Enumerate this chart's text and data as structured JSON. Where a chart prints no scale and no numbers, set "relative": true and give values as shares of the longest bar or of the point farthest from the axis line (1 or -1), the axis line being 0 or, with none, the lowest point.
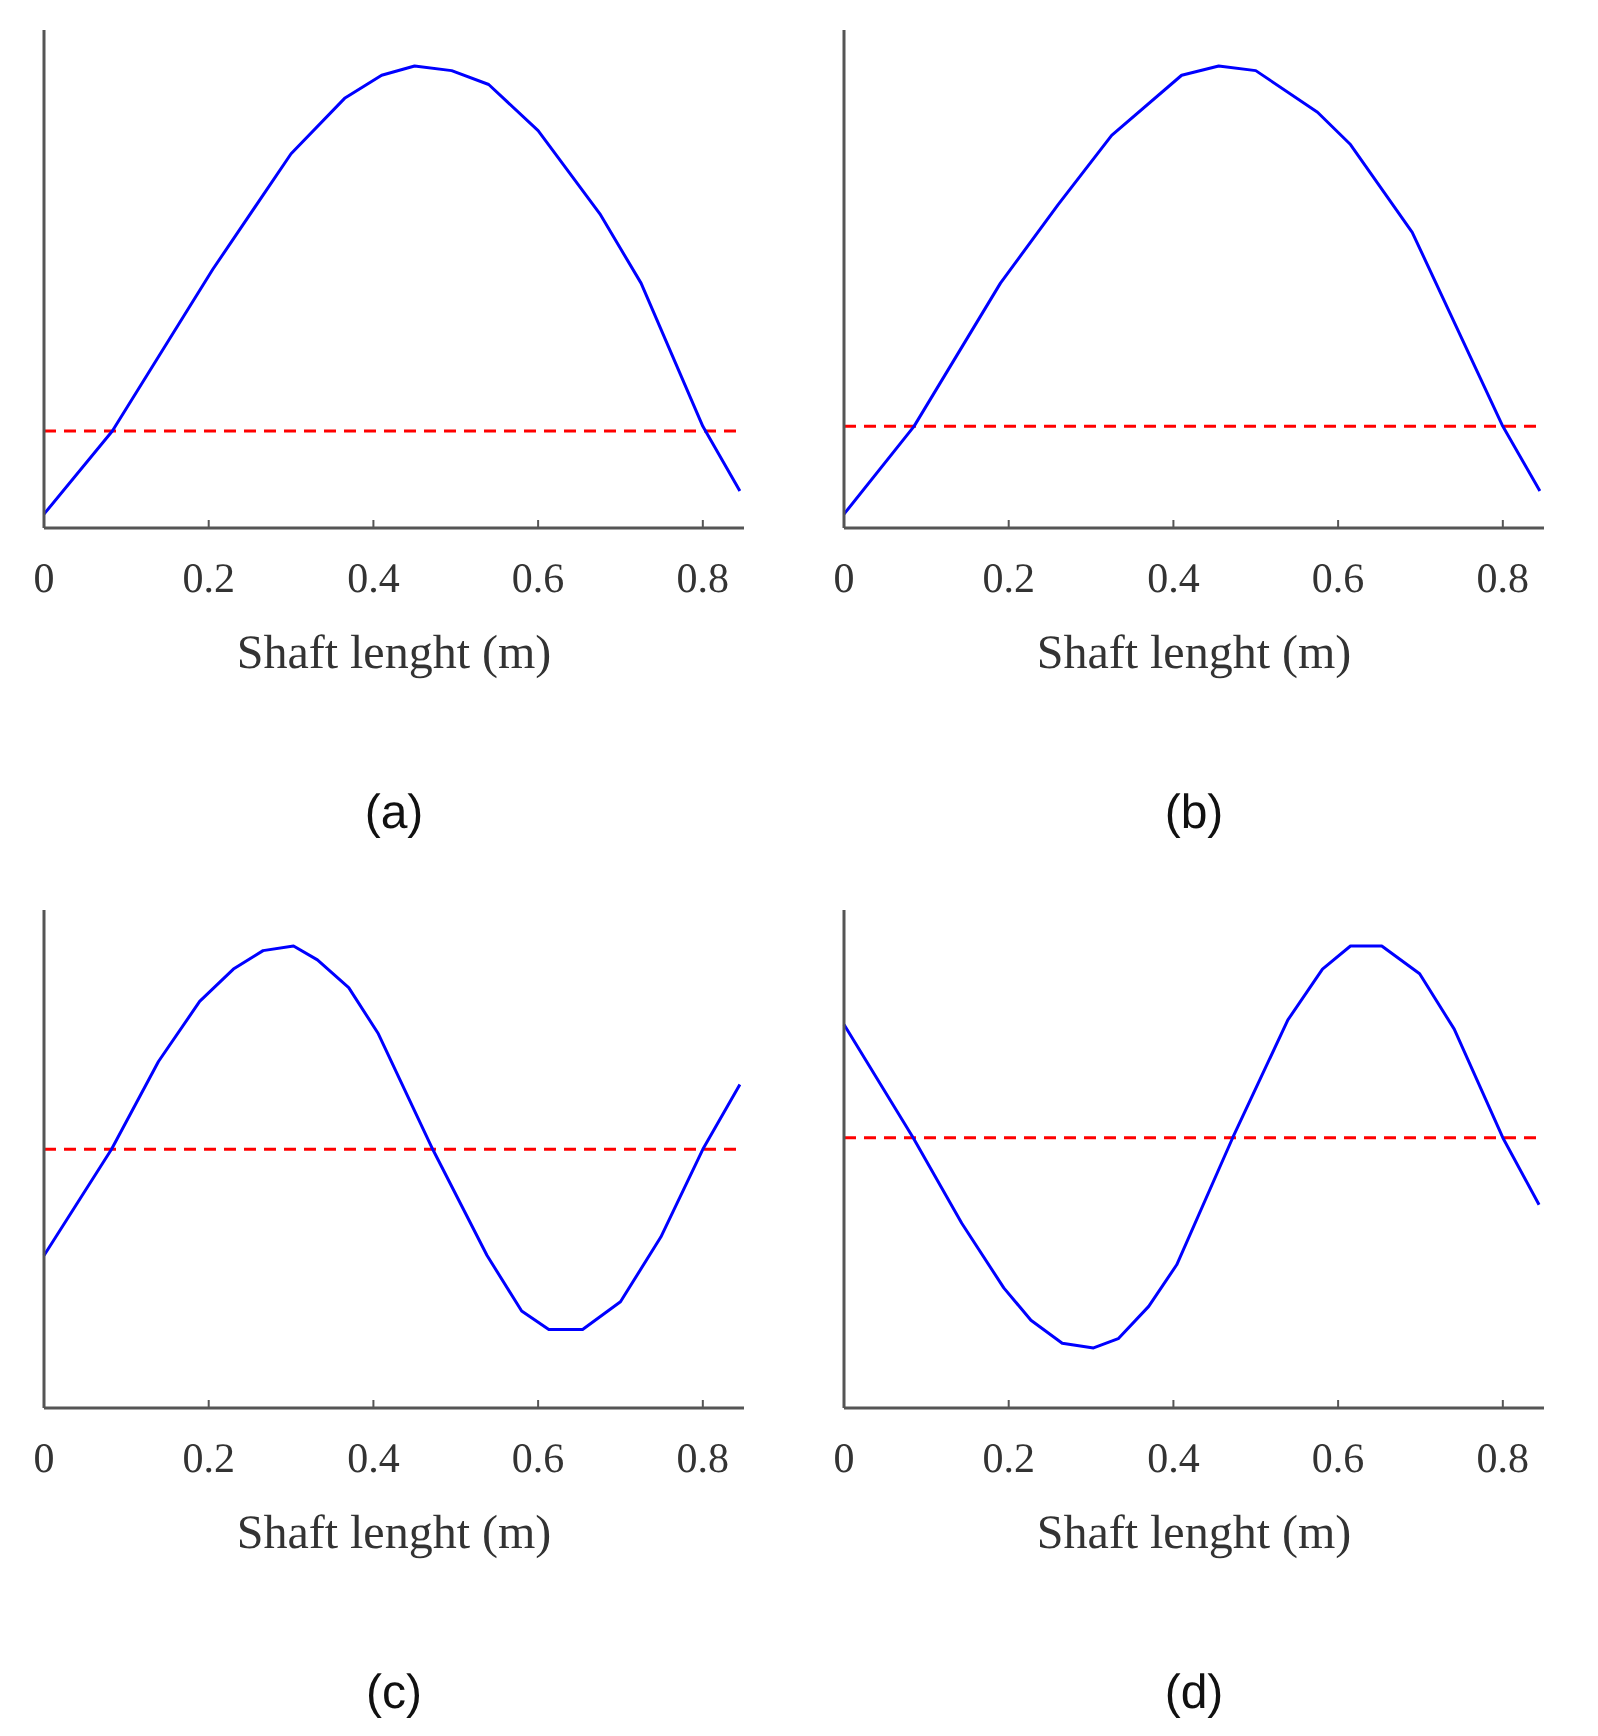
{
  "chart_data": [
    {
      "type": "line",
      "title": "(a)",
      "xlabel": "Shaft lenght (m)",
      "relative": true,
      "xlim": [
        0,
        0.85
      ],
      "xticks": [
        0,
        0.2,
        0.4,
        0.6,
        0.8
      ],
      "tick_labels": "x",
      "grid": false,
      "series": [
        {
          "color": "#0000ff",
          "x": [
            0,
            0.083,
            0.205,
            0.3,
            0.365,
            0.41,
            0.45,
            0.495,
            0.54,
            0.6,
            0.675,
            0.725,
            0.8,
            0.845
          ],
          "values": [
            0.03,
            0.21,
            0.56,
            0.81,
            0.93,
            0.98,
            1.0,
            0.99,
            0.96,
            0.86,
            0.68,
            0.53,
            0.22,
            0.08
          ]
        }
      ],
      "ref_lines": [
        {
          "axis": "y",
          "value": 0.21,
          "color": "#ff0000",
          "line_style": "dashed"
        }
      ]
    },
    {
      "type": "line",
      "title": "(b)",
      "xlabel": "Shaft lenght (m)",
      "relative": true,
      "xlim": [
        0,
        0.85
      ],
      "xticks": [
        0,
        0.2,
        0.4,
        0.6,
        0.8
      ],
      "tick_labels": "x",
      "grid": false,
      "series": [
        {
          "color": "#0000ff",
          "x": [
            0,
            0.085,
            0.19,
            0.26,
            0.325,
            0.41,
            0.455,
            0.5,
            0.575,
            0.615,
            0.69,
            0.8,
            0.845
          ],
          "values": [
            0.03,
            0.22,
            0.53,
            0.7,
            0.85,
            0.98,
            1.0,
            0.99,
            0.9,
            0.83,
            0.64,
            0.22,
            0.08
          ]
        }
      ],
      "ref_lines": [
        {
          "axis": "y",
          "value": 0.22,
          "color": "#ff0000",
          "line_style": "dashed"
        }
      ]
    },
    {
      "type": "line",
      "title": "(c)",
      "xlabel": "Shaft lenght (m)",
      "relative": true,
      "xlim": [
        0,
        0.85
      ],
      "xticks": [
        0,
        0.2,
        0.4,
        0.6,
        0.8
      ],
      "tick_labels": "x",
      "grid": false,
      "series": [
        {
          "color": "#0000ff",
          "x": [
            0,
            0.082,
            0.139,
            0.189,
            0.23,
            0.266,
            0.303,
            0.332,
            0.37,
            0.406,
            0.472,
            0.538,
            0.58,
            0.613,
            0.654,
            0.7,
            0.749,
            0.8,
            0.845
          ],
          "values": [
            0.33,
            0.56,
            0.75,
            0.88,
            0.95,
            0.99,
            1.0,
            0.97,
            0.91,
            0.81,
            0.56,
            0.33,
            0.21,
            0.17,
            0.17,
            0.23,
            0.37,
            0.56,
            0.7
          ]
        }
      ],
      "ref_lines": [
        {
          "axis": "y",
          "value": 0.56,
          "color": "#ff0000",
          "line_style": "dashed"
        }
      ]
    },
    {
      "type": "line",
      "title": "(d)",
      "xlabel": "Shaft lenght (m)",
      "relative": true,
      "xlim": [
        0,
        0.85
      ],
      "xticks": [
        0,
        0.2,
        0.4,
        0.6,
        0.8
      ],
      "tick_labels": "x",
      "grid": false,
      "series": [
        {
          "color": "#0000ff",
          "x": [
            0,
            0.084,
            0.143,
            0.194,
            0.227,
            0.265,
            0.303,
            0.333,
            0.37,
            0.404,
            0.472,
            0.539,
            0.581,
            0.615,
            0.653,
            0.699,
            0.741,
            0.8,
            0.844
          ],
          "values": [
            0.83,
            0.585,
            0.4,
            0.26,
            0.19,
            0.14,
            0.13,
            0.15,
            0.22,
            0.31,
            0.585,
            0.84,
            0.95,
            1.0,
            1.0,
            0.94,
            0.82,
            0.585,
            0.44
          ]
        }
      ],
      "ref_lines": [
        {
          "axis": "y",
          "value": 0.585,
          "color": "#ff0000",
          "line_style": "dashed"
        }
      ]
    }
  ]
}
